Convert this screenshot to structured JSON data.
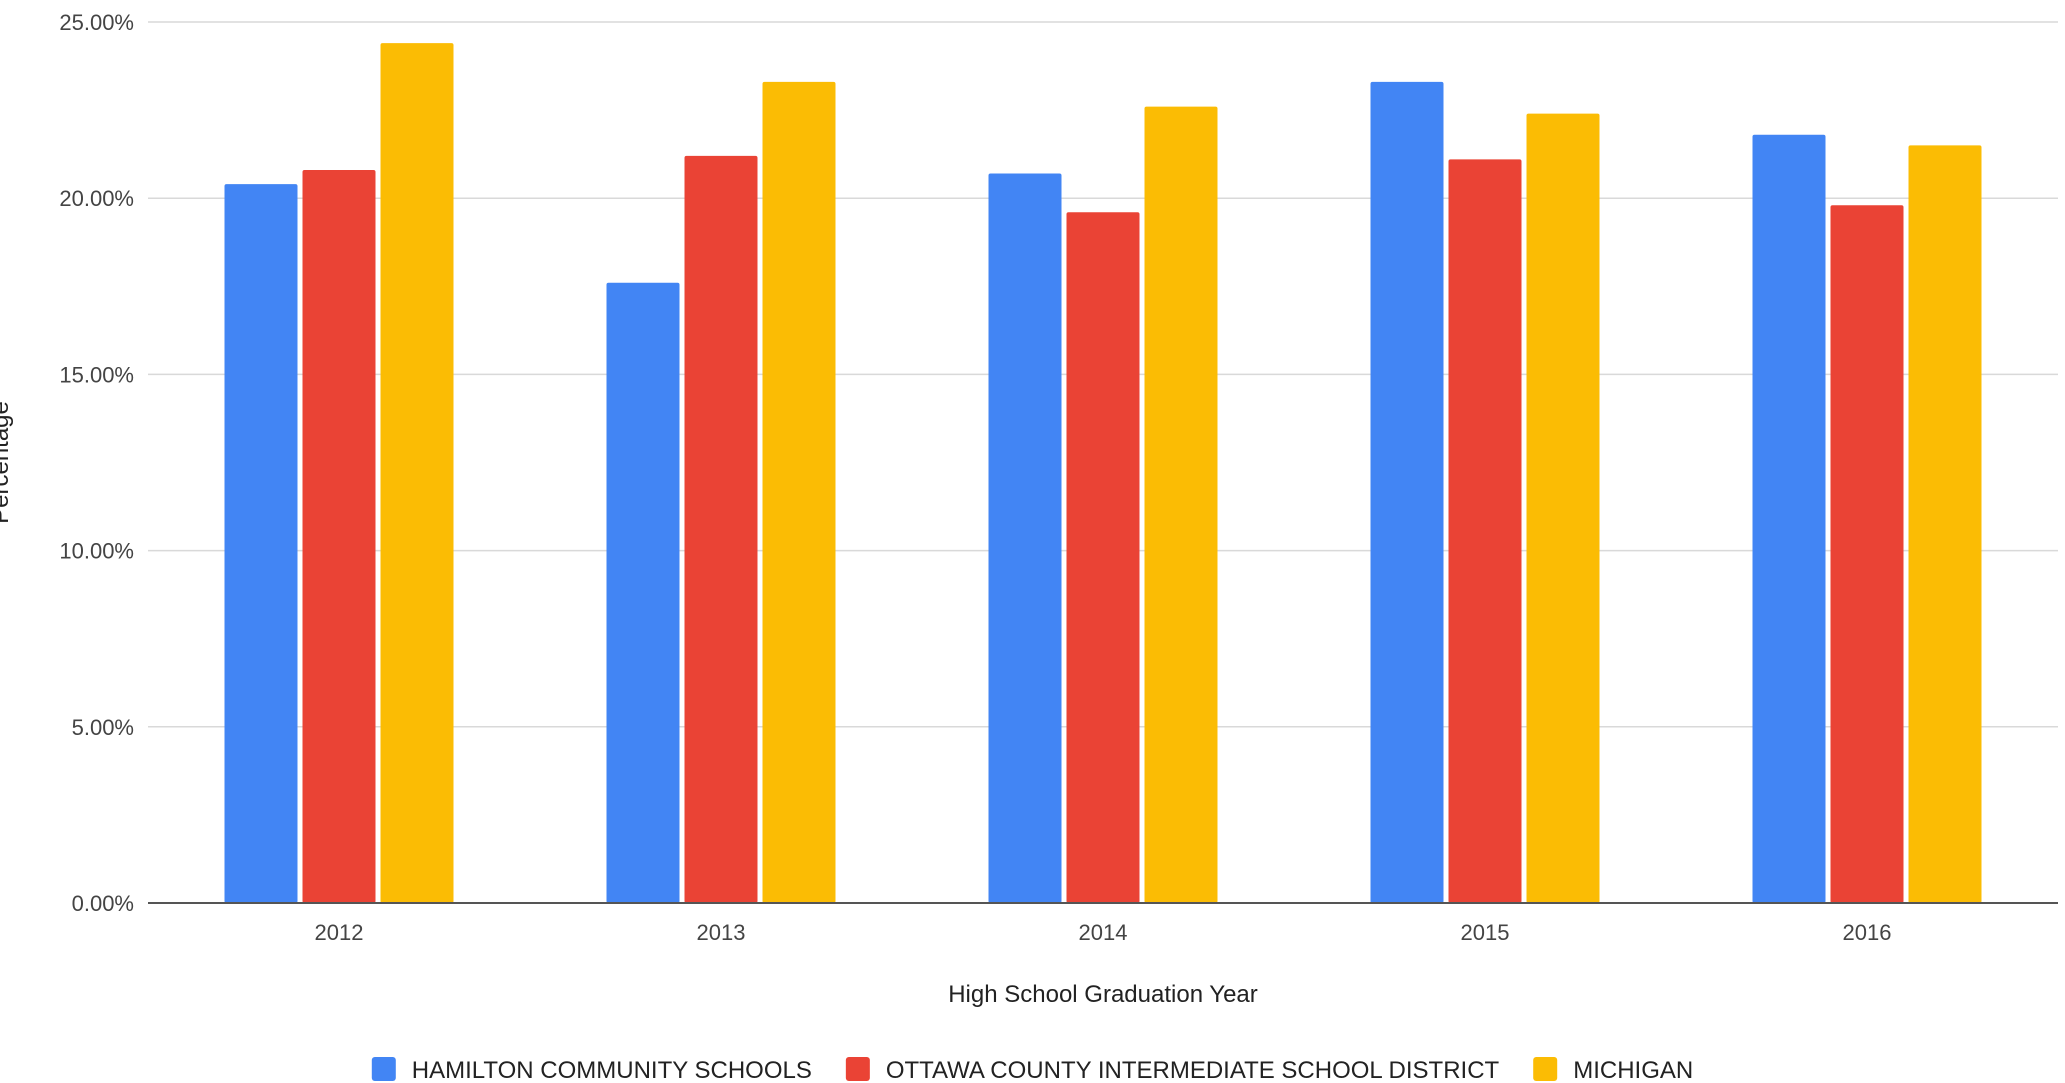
{
  "chart_data": {
    "type": "bar",
    "title": "",
    "xlabel": "High School Graduation Year",
    "ylabel": "Percentage",
    "categories": [
      "2012",
      "2013",
      "2014",
      "2015",
      "2016"
    ],
    "ylim": [
      0,
      25
    ],
    "yticks": [
      0,
      5,
      10,
      15,
      20,
      25
    ],
    "ytick_labels": [
      "0.00%",
      "5.00%",
      "10.00%",
      "15.00%",
      "20.00%",
      "25.00%"
    ],
    "grid": true,
    "legend_position": "bottom",
    "series": [
      {
        "name": "HAMILTON COMMUNITY SCHOOLS",
        "color": "#4285F4",
        "values": [
          20.4,
          17.6,
          20.7,
          23.3,
          21.8
        ]
      },
      {
        "name": "OTTAWA COUNTY INTERMEDIATE SCHOOL DISTRICT",
        "color": "#EA4335",
        "values": [
          20.8,
          21.2,
          19.6,
          21.1,
          19.8
        ]
      },
      {
        "name": "MICHIGAN",
        "color": "#FBBC04",
        "values": [
          24.4,
          23.3,
          22.6,
          22.4,
          21.5
        ]
      }
    ]
  }
}
